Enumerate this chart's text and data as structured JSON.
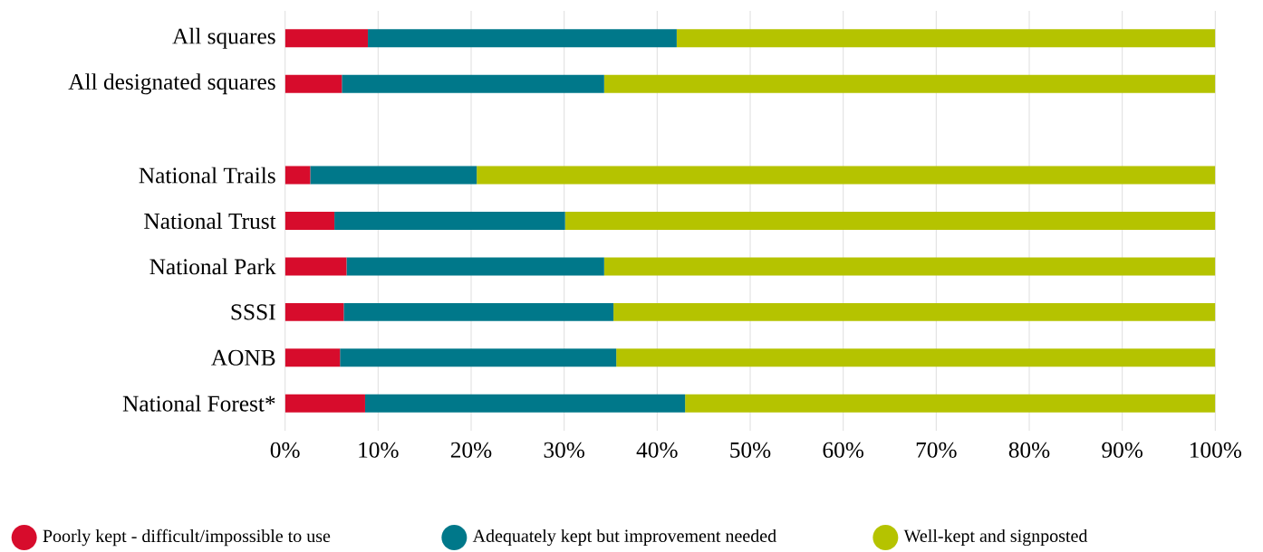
{
  "chart_data": {
    "type": "bar",
    "orientation": "horizontal",
    "stacked": true,
    "categories": [
      "All squares",
      "All designated squares",
      null,
      "National Trails",
      "National Trust",
      "National Park",
      "SSSI",
      "AONB",
      "National Forest*"
    ],
    "series": [
      {
        "name": "Poorly kept - difficult/impossible to use",
        "color": "#d70c2c",
        "values": [
          8.9,
          6.1,
          null,
          2.7,
          5.3,
          6.6,
          6.3,
          5.9,
          8.6
        ]
      },
      {
        "name": "Adequately kept but improvement needed",
        "color": "#00788a",
        "values": [
          33.2,
          28.2,
          null,
          17.9,
          24.8,
          27.7,
          29.0,
          29.7,
          34.4
        ]
      },
      {
        "name": "Well-kept and signposted",
        "color": "#b5c300",
        "values": [
          57.9,
          65.7,
          null,
          79.4,
          69.9,
          65.7,
          64.7,
          64.4,
          57.0
        ]
      }
    ],
    "xlim": [
      0,
      100
    ],
    "xticks": [
      {
        "value": 0,
        "label": "0%"
      },
      {
        "value": 10,
        "label": "10%"
      },
      {
        "value": 20,
        "label": "20%"
      },
      {
        "value": 30,
        "label": "30%"
      },
      {
        "value": 40,
        "label": "40%"
      },
      {
        "value": 50,
        "label": "50%"
      },
      {
        "value": 60,
        "label": "60%"
      },
      {
        "value": 70,
        "label": "70%"
      },
      {
        "value": 80,
        "label": "80%"
      },
      {
        "value": 90,
        "label": "90%"
      },
      {
        "value": 100,
        "label": "100%"
      }
    ],
    "grid": "x",
    "legend": "bottom"
  }
}
